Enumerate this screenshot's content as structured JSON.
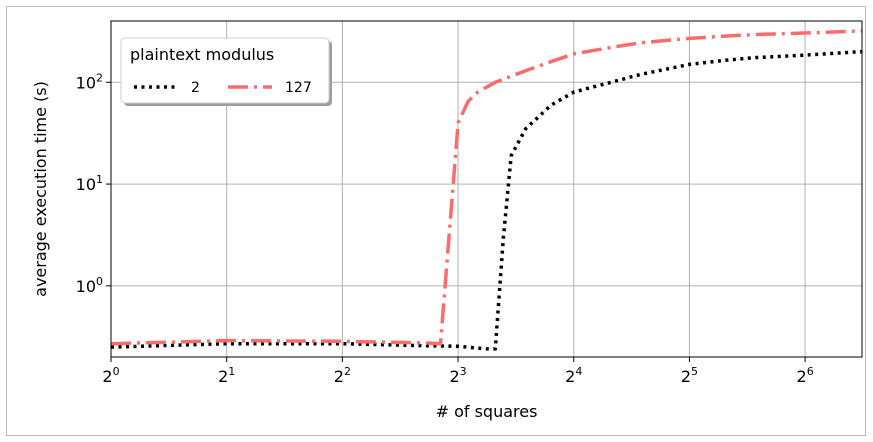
{
  "chart_data": {
    "type": "line",
    "xlabel": "# of squares",
    "ylabel": "average execution time (s)",
    "x_scale": "log2",
    "y_scale": "log10",
    "xlim": [
      1,
      90
    ],
    "ylim": [
      0.2,
      400
    ],
    "grid": true,
    "legend": {
      "title": "plaintext modulus",
      "placement": "top-left"
    },
    "x_ticks": [
      {
        "base": "2",
        "exp": "0",
        "value": 1
      },
      {
        "base": "2",
        "exp": "1",
        "value": 2
      },
      {
        "base": "2",
        "exp": "2",
        "value": 4
      },
      {
        "base": "2",
        "exp": "3",
        "value": 8
      },
      {
        "base": "2",
        "exp": "4",
        "value": 16
      },
      {
        "base": "2",
        "exp": "5",
        "value": 32
      },
      {
        "base": "2",
        "exp": "6",
        "value": 64
      }
    ],
    "y_ticks": [
      {
        "base": "10",
        "exp": "0",
        "value": 1
      },
      {
        "base": "10",
        "exp": "1",
        "value": 10
      },
      {
        "base": "10",
        "exp": "2",
        "value": 100
      }
    ],
    "series": [
      {
        "name": "2",
        "color": "#000000",
        "style": "dotted",
        "x": [
          1,
          2,
          4,
          6,
          8,
          9.5,
          10,
          10.5,
          11,
          12,
          14,
          16,
          20,
          24,
          32,
          40,
          48,
          64,
          90
        ],
        "y": [
          0.25,
          0.27,
          0.27,
          0.26,
          0.255,
          0.24,
          0.24,
          3,
          19,
          35,
          60,
          80,
          100,
          120,
          150,
          165,
          175,
          185,
          200
        ]
      },
      {
        "name": "127",
        "color": "#ff6b6b",
        "style": "dashdot",
        "x": [
          1,
          2,
          4,
          6.5,
          7.2,
          8,
          8.5,
          9,
          10,
          12,
          14,
          16,
          20,
          24,
          32,
          40,
          48,
          64,
          90
        ],
        "y": [
          0.27,
          0.29,
          0.285,
          0.275,
          0.27,
          40,
          65,
          80,
          100,
          130,
          160,
          190,
          220,
          245,
          270,
          285,
          295,
          305,
          320
        ]
      }
    ]
  }
}
